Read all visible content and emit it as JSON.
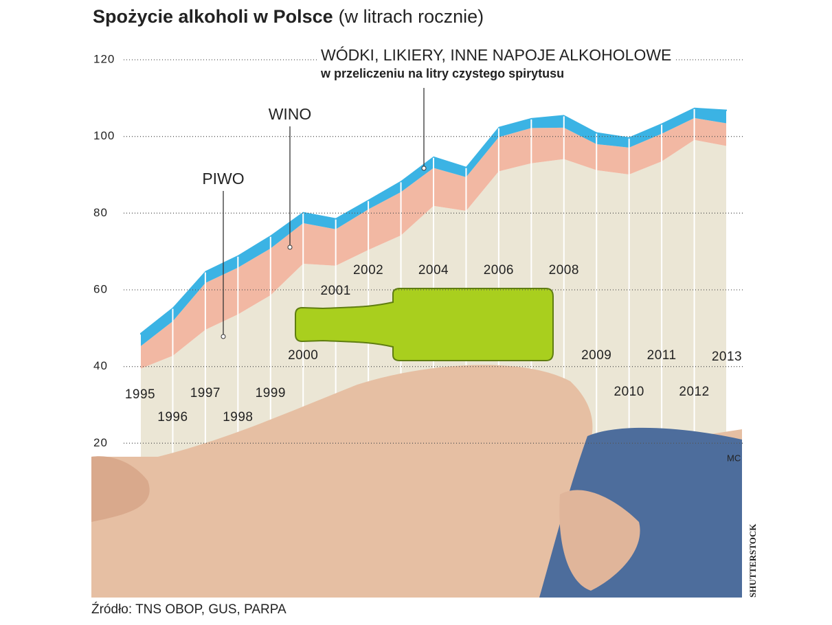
{
  "chart_data": {
    "type": "stacked_area",
    "title": "Spożycie alkoholi w Polsce",
    "subtitle": "(w litrach rocznie)",
    "categories": [
      "1995",
      "1996",
      "1997",
      "1998",
      "1999",
      "2000",
      "2001",
      "2002",
      null,
      "2004",
      null,
      "2006",
      null,
      "2008",
      "2009",
      "2010",
      "2011",
      "2012",
      "2013"
    ],
    "series": [
      {
        "name": "PIWO",
        "color": "#ebe6d5",
        "values": [
          39.4,
          42.8,
          49.6,
          53.6,
          58.6,
          66.8,
          66.3,
          70.4,
          74.2,
          81.9,
          80.6,
          90.9,
          93.0,
          94.1,
          91.2,
          90.1,
          93.5,
          99.1,
          97.5
        ]
      },
      {
        "name": "WINO",
        "color": "#f2b8a3",
        "values": [
          5.8,
          9.0,
          12.2,
          12.2,
          12.2,
          10.6,
          9.5,
          10.6,
          11.3,
          9.9,
          8.8,
          8.9,
          9.2,
          8.2,
          6.8,
          7.0,
          7.2,
          5.7,
          5.9
        ]
      },
      {
        "name": "WÓDKI, LIKIERY, INNE NAPOJE ALKOHOLOWE",
        "note": "w przeliczeniu na litry czystego spirytusu",
        "color": "#3bb3e4",
        "values": [
          3.5,
          3.6,
          3.1,
          3.2,
          3.4,
          2.9,
          2.9,
          2.5,
          2.9,
          3.0,
          2.7,
          2.7,
          2.6,
          3.3,
          3.1,
          2.7,
          2.7,
          2.7,
          3.6
        ]
      }
    ],
    "ylim": [
      0,
      120
    ],
    "yticks": [
      20,
      40,
      60,
      80,
      100,
      120
    ],
    "grid": true,
    "source": "Źródło: TNS OBOP, GUS, PARPA",
    "author": "MC",
    "photo_credit": "SHUTTERSTOCK"
  }
}
